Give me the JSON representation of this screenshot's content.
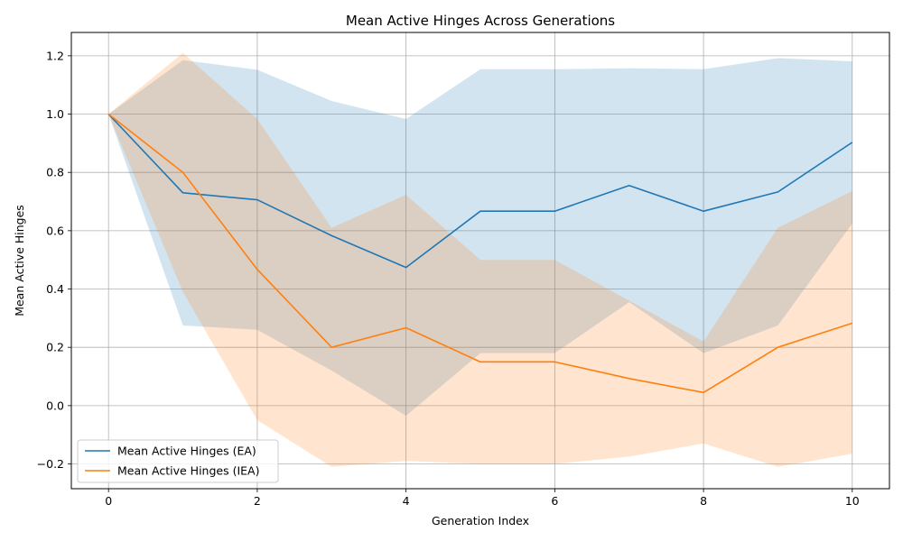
{
  "chart_data": {
    "type": "line",
    "title": "Mean Active Hinges Across Generations",
    "xlabel": "Generation Index",
    "ylabel": "Mean Active Hinges",
    "xlim": [
      -0.5,
      10.5
    ],
    "ylim": [
      -0.285,
      1.28
    ],
    "xticks": [
      0,
      2,
      4,
      6,
      8,
      10
    ],
    "yticks": [
      -0.2,
      0.0,
      0.2,
      0.4,
      0.6,
      0.8,
      1.0,
      1.2
    ],
    "grid": true,
    "legend_position": "lower-left",
    "x": [
      0,
      1,
      2,
      3,
      4,
      5,
      6,
      7,
      8,
      9,
      10
    ],
    "series": [
      {
        "name": "Mean Active Hinges (EA)",
        "color": "#1f77b4",
        "band_color": "#1f77b4",
        "values": [
          1.0,
          0.73,
          0.706,
          0.583,
          0.474,
          0.667,
          0.667,
          0.755,
          0.667,
          0.733,
          0.903
        ],
        "lower": [
          1.0,
          0.275,
          0.26,
          0.12,
          -0.035,
          0.18,
          0.18,
          0.355,
          0.18,
          0.275,
          0.625
        ],
        "upper": [
          1.0,
          1.185,
          1.152,
          1.045,
          0.983,
          1.154,
          1.154,
          1.157,
          1.154,
          1.192,
          1.181
        ]
      },
      {
        "name": "Mean Active Hinges (IEA)",
        "color": "#ff7f0e",
        "band_color": "#ff7f0e",
        "values": [
          1.0,
          0.8,
          0.467,
          0.2,
          0.267,
          0.15,
          0.15,
          0.093,
          0.045,
          0.2,
          0.283
        ],
        "lower": [
          1.0,
          0.39,
          -0.05,
          -0.21,
          -0.19,
          -0.2,
          -0.2,
          -0.175,
          -0.13,
          -0.21,
          -0.165
        ],
        "upper": [
          1.0,
          1.21,
          0.983,
          0.61,
          0.723,
          0.5,
          0.5,
          0.36,
          0.22,
          0.61,
          0.736
        ]
      }
    ]
  }
}
